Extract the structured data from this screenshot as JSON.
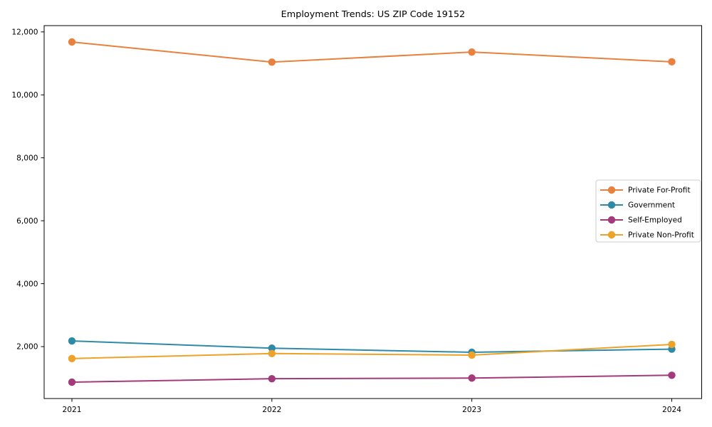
{
  "chart_data": {
    "type": "line",
    "title": "Employment Trends: US ZIP Code 19152",
    "categories": [
      "2021",
      "2022",
      "2023",
      "2024"
    ],
    "series": [
      {
        "name": "Private For-Profit",
        "color": "#e8813d",
        "values": [
          11680,
          11040,
          11360,
          11050
        ]
      },
      {
        "name": "Government",
        "color": "#2e8ba8",
        "values": [
          2180,
          1950,
          1820,
          1920
        ]
      },
      {
        "name": "Self-Employed",
        "color": "#a33a7c",
        "values": [
          870,
          980,
          1000,
          1090
        ]
      },
      {
        "name": "Private Non-Profit",
        "color": "#eda229",
        "values": [
          1620,
          1780,
          1730,
          2070
        ]
      }
    ],
    "xlabel": "",
    "ylabel": "",
    "ylim": [
      350,
      12200
    ],
    "yticks": [
      2000,
      4000,
      6000,
      8000,
      10000,
      12000
    ],
    "ytick_labels": [
      "2,000",
      "4,000",
      "6,000",
      "8,000",
      "10,000",
      "12,000"
    ],
    "grid": false,
    "legend_position": "center right",
    "marker": "circle",
    "background": "#ffffff"
  }
}
